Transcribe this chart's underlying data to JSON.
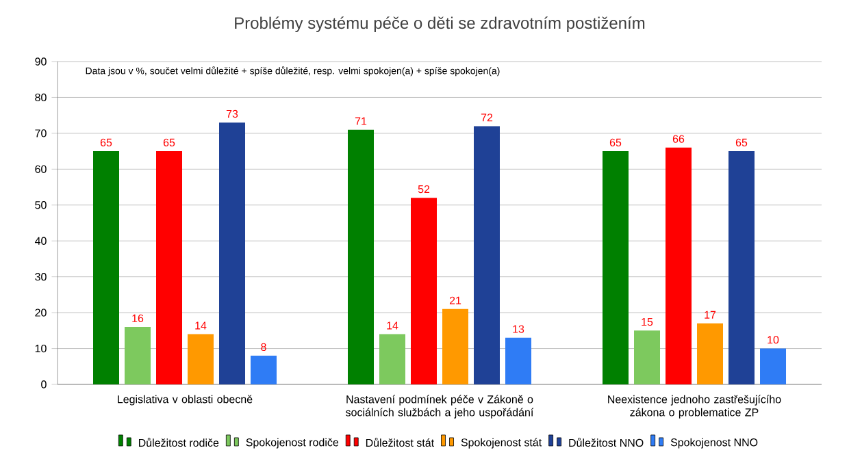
{
  "chart_data": {
    "type": "bar",
    "title": "Problémy systému péče o děti se zdravotním postižením",
    "annotations": [
      "Data jsou v %, součet velmi důležité + spíše důležité, resp. velmi spokojen(a) + spíše spokojen(a)"
    ],
    "categories": [
      "Legislativa v oblasti obecně",
      "Nastavení podmínek péče v Zákoně o sociálních službách a jeho uspořádání",
      "Neexistence jednoho zastřešujícího zákona o problematice ZP"
    ],
    "series": [
      {
        "name": "Důležitost rodiče",
        "color": "#008000",
        "values": [
          65,
          71,
          65
        ]
      },
      {
        "name": "Spokojenost rodiče",
        "color": "#7dc95e",
        "values": [
          16,
          14,
          15
        ]
      },
      {
        "name": "Důležitost stát",
        "color": "#ff0000",
        "values": [
          65,
          52,
          66
        ]
      },
      {
        "name": "Spokojenost stát",
        "color": "#ff9900",
        "values": [
          14,
          21,
          17
        ]
      },
      {
        "name": "Důležitost NNO",
        "color": "#1f4196",
        "values": [
          73,
          72,
          65
        ]
      },
      {
        "name": "Spokojenost NNO",
        "color": "#2f7cf5",
        "values": [
          8,
          13,
          10
        ]
      }
    ],
    "ylim": [
      0,
      90
    ],
    "yticks": [
      0,
      10,
      20,
      30,
      40,
      50,
      60,
      70,
      80,
      90
    ],
    "grid": "y",
    "legend": "bottom",
    "data_labels": true
  }
}
